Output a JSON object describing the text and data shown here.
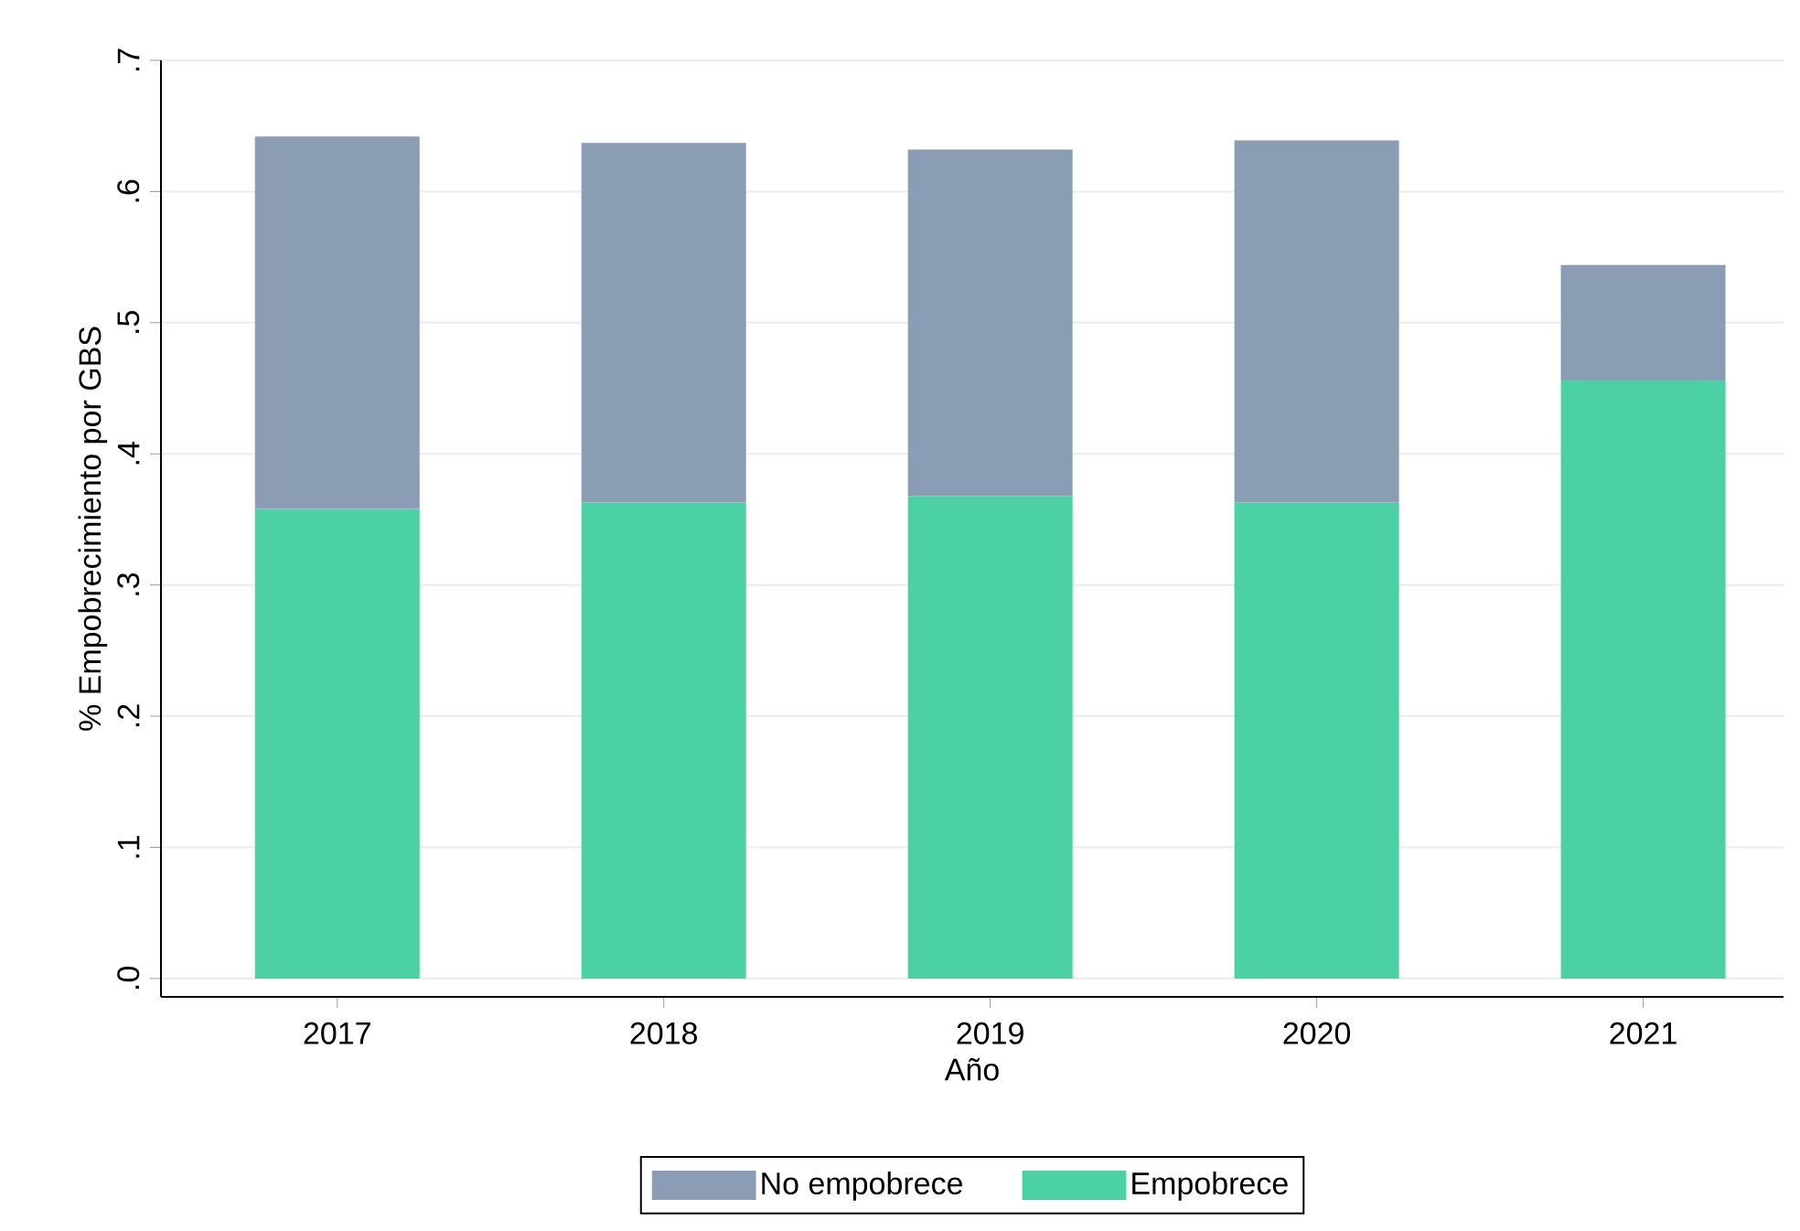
{
  "chart_data": {
    "type": "bar",
    "stacked": true,
    "xlabel": "Año",
    "ylabel": "% Empobrecimiento por GBS",
    "categories": [
      "2017",
      "2018",
      "2019",
      "2020",
      "2021"
    ],
    "series": [
      {
        "name": "Empobrece",
        "color": "#4cd1a5",
        "values": [
          0.358,
          0.363,
          0.368,
          0.363,
          0.456
        ]
      },
      {
        "name": "No empobrece",
        "color": "#8a9db5",
        "values": [
          0.284,
          0.274,
          0.264,
          0.276,
          0.088
        ]
      }
    ],
    "ylim": [
      -0.014,
      0.7
    ],
    "yticks": [
      {
        "value": 0,
        "label": ".0"
      },
      {
        "value": 0.1,
        "label": ".1"
      },
      {
        "value": 0.2,
        "label": ".2"
      },
      {
        "value": 0.3,
        "label": ".3"
      },
      {
        "value": 0.4,
        "label": ".4"
      },
      {
        "value": 0.5,
        "label": ".5"
      },
      {
        "value": 0.6,
        "label": ".6"
      },
      {
        "value": 0.7,
        "label": ".7"
      }
    ],
    "grid": "y",
    "legend": "bottom"
  }
}
